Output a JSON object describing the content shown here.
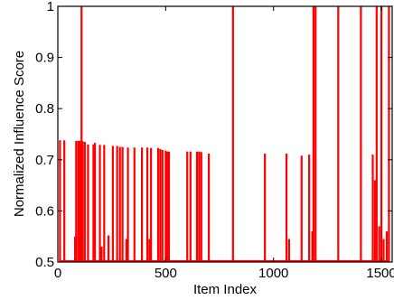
{
  "chart_data": {
    "type": "line",
    "title": "",
    "xlabel": "Item Index",
    "ylabel": "Normalized Influence Score",
    "xlim": [
      0,
      1550
    ],
    "ylim": [
      0.5,
      1.0
    ],
    "x_ticks": [
      0,
      500,
      1000,
      1500
    ],
    "y_ticks": [
      0.5,
      0.6,
      0.7,
      0.8,
      0.9,
      1.0
    ],
    "x_tick_labels": [
      "0",
      "500",
      "1000",
      "1500"
    ],
    "y_tick_labels": [
      "0.5",
      "0.6",
      "0.7",
      "0.8",
      "0.9",
      "1"
    ],
    "grid": false,
    "line_color": "#ff0000",
    "series": [
      {
        "spikes": [
          {
            "x": 10,
            "y": 0.738
          },
          {
            "x": 30,
            "y": 0.738
          },
          {
            "x": 80,
            "y": 0.55
          },
          {
            "x": 85,
            "y": 0.737
          },
          {
            "x": 95,
            "y": 0.737
          },
          {
            "x": 103,
            "y": 0.737
          },
          {
            "x": 110,
            "y": 1.0
          },
          {
            "x": 115,
            "y": 0.736
          },
          {
            "x": 125,
            "y": 0.735
          },
          {
            "x": 140,
            "y": 0.73
          },
          {
            "x": 165,
            "y": 0.73
          },
          {
            "x": 172,
            "y": 0.733
          },
          {
            "x": 195,
            "y": 0.729
          },
          {
            "x": 203,
            "y": 0.53
          },
          {
            "x": 215,
            "y": 0.729
          },
          {
            "x": 235,
            "y": 0.552
          },
          {
            "x": 255,
            "y": 0.727
          },
          {
            "x": 275,
            "y": 0.727
          },
          {
            "x": 288,
            "y": 0.725
          },
          {
            "x": 300,
            "y": 0.725
          },
          {
            "x": 318,
            "y": 0.545
          },
          {
            "x": 325,
            "y": 0.724
          },
          {
            "x": 355,
            "y": 0.724
          },
          {
            "x": 390,
            "y": 0.724
          },
          {
            "x": 415,
            "y": 0.724
          },
          {
            "x": 425,
            "y": 0.545
          },
          {
            "x": 432,
            "y": 0.723
          },
          {
            "x": 465,
            "y": 0.723
          },
          {
            "x": 475,
            "y": 0.721
          },
          {
            "x": 485,
            "y": 0.719
          },
          {
            "x": 500,
            "y": 0.718
          },
          {
            "x": 507,
            "y": 0.716
          },
          {
            "x": 515,
            "y": 0.716
          },
          {
            "x": 600,
            "y": 0.716
          },
          {
            "x": 615,
            "y": 0.716
          },
          {
            "x": 645,
            "y": 0.716
          },
          {
            "x": 655,
            "y": 0.716
          },
          {
            "x": 665,
            "y": 0.715
          },
          {
            "x": 700,
            "y": 0.712
          },
          {
            "x": 812,
            "y": 1.0
          },
          {
            "x": 960,
            "y": 0.712
          },
          {
            "x": 1060,
            "y": 0.712
          },
          {
            "x": 1072,
            "y": 0.545
          },
          {
            "x": 1130,
            "y": 0.708
          },
          {
            "x": 1165,
            "y": 0.71
          },
          {
            "x": 1180,
            "y": 0.56
          },
          {
            "x": 1185,
            "y": 1.0
          },
          {
            "x": 1195,
            "y": 1.0
          },
          {
            "x": 1300,
            "y": 1.0
          },
          {
            "x": 1405,
            "y": 1.0
          },
          {
            "x": 1460,
            "y": 0.71
          },
          {
            "x": 1470,
            "y": 0.66
          },
          {
            "x": 1478,
            "y": 1.0
          },
          {
            "x": 1490,
            "y": 0.57
          },
          {
            "x": 1500,
            "y": 1.0
          },
          {
            "x": 1510,
            "y": 0.545
          },
          {
            "x": 1525,
            "y": 0.56
          },
          {
            "x": 1535,
            "y": 1.0
          }
        ]
      }
    ]
  }
}
